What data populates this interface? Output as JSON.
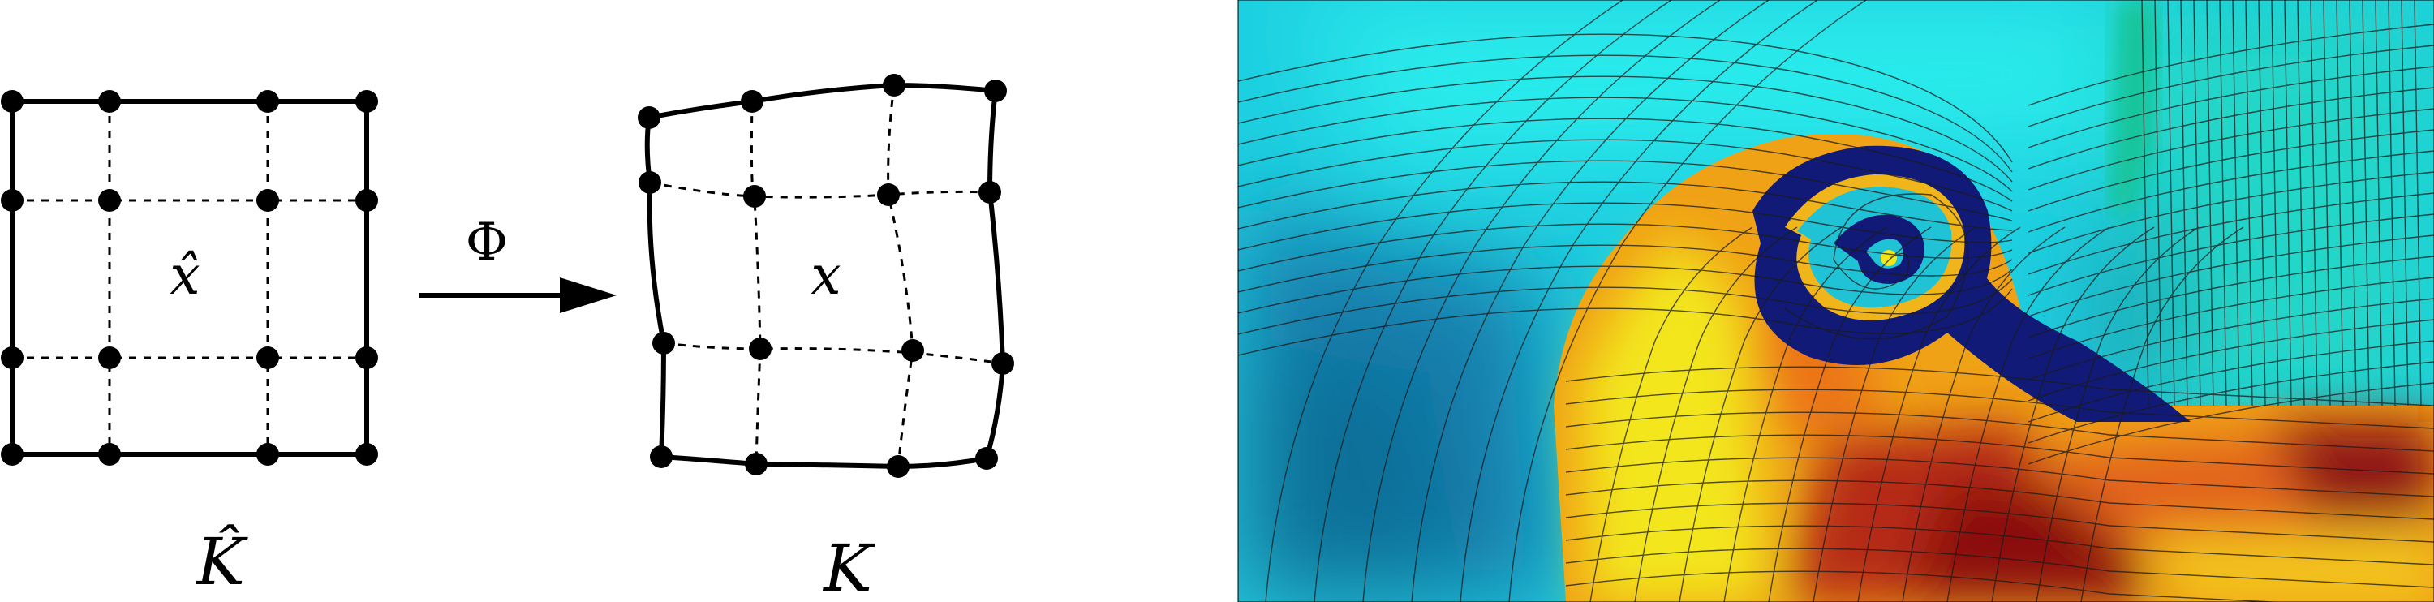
{
  "left_panel": {
    "reference_element_label": "K̂",
    "physical_element_label": "K",
    "reference_point_label": "x̂",
    "physical_point_label": "x",
    "map_label": "Φ"
  },
  "right_panel": {
    "colors": {
      "cyan": "#21e0e6",
      "teal": "#1ba8c0",
      "dark_teal": "#0f6f98",
      "navy": "#121a78",
      "yellow": "#f2e81a",
      "orange": "#f08c12",
      "red_orange": "#d8500e",
      "dark_red": "#8a1010",
      "green": "#1fcf9d"
    }
  }
}
